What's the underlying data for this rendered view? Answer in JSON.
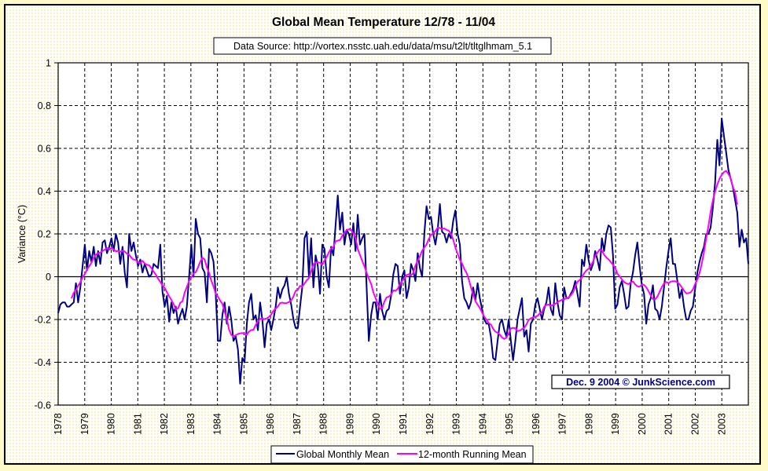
{
  "chart_data": {
    "type": "line",
    "title": "Global Mean Temperature 12/78 - 11/04",
    "subtitle": "Data Source: http://vortex.nsstc.uah.edu/data/msu/t2lt/tltglhmam_5.1",
    "annotation": "Dec. 9 2004 © JunkScience.com",
    "xlabel": "",
    "ylabel": "Variance (°C)",
    "ylim": [
      -0.6,
      1.0
    ],
    "yticks": [
      -0.6,
      -0.4,
      -0.2,
      0,
      0.2,
      0.4,
      0.6,
      0.8,
      1
    ],
    "ytick_labels": [
      "-0.6",
      "-0.4",
      "-0.2",
      "0",
      "0.2",
      "0.4",
      "0.6",
      "0.8",
      "1"
    ],
    "xtick_labels": [
      "1978",
      "1979",
      "1980",
      "1981",
      "1982",
      "1983",
      "1984",
      "1985",
      "1986",
      "1987",
      "1988",
      "1989",
      "1990",
      "1991",
      "1992",
      "1993",
      "1994",
      "1995",
      "1996",
      "1997",
      "1998",
      "1999",
      "2000",
      "2001",
      "2002",
      "2003"
    ],
    "x_period": "monthly, 12/1978 - 11/2004",
    "grid": true,
    "legend_position": "bottom-center",
    "series": [
      {
        "name": "Global Monthly Mean",
        "color": "#000080",
        "values": [
          -0.17,
          -0.13,
          -0.12,
          -0.12,
          -0.14,
          -0.14,
          -0.13,
          -0.12,
          -0.03,
          -0.12,
          -0.05,
          0.05,
          0.15,
          0.03,
          0.12,
          0.07,
          0.14,
          0.05,
          0.12,
          0.06,
          0.16,
          0.17,
          0.11,
          0.14,
          0.18,
          0.12,
          0.2,
          0.16,
          0.06,
          0.14,
          0.02,
          -0.05,
          0.2,
          0.12,
          0.16,
          0.1,
          0.05,
          0.08,
          0.02,
          0.06,
          0.03,
          0.0,
          0.01,
          0.06,
          0.05,
          0.04,
          0.15,
          -0.07,
          -0.14,
          -0.09,
          -0.21,
          -0.12,
          -0.17,
          -0.14,
          -0.22,
          -0.18,
          -0.15,
          -0.2,
          -0.14,
          0.0,
          0.15,
          0.0,
          0.27,
          0.2,
          0.18,
          0.04,
          0.02,
          -0.12,
          0.13,
          0.11,
          0.07,
          -0.08,
          -0.3,
          -0.3,
          -0.18,
          -0.12,
          -0.22,
          -0.14,
          -0.2,
          -0.3,
          -0.28,
          -0.34,
          -0.5,
          -0.38,
          -0.4,
          -0.22,
          -0.12,
          -0.08,
          -0.2,
          -0.18,
          -0.25,
          -0.12,
          -0.2,
          -0.33,
          -0.22,
          -0.2,
          -0.25,
          -0.2,
          -0.14,
          -0.05,
          -0.1,
          -0.06,
          -0.04,
          0.0,
          -0.08,
          -0.13,
          -0.2,
          -0.24,
          -0.24,
          -0.14,
          -0.05,
          0.18,
          0.21,
          0.0,
          0.18,
          -0.05,
          0.1,
          0.05,
          -0.08,
          0.15,
          0.13,
          0.0,
          -0.05,
          0.14,
          0.1,
          0.24,
          0.38,
          0.22,
          0.3,
          0.15,
          0.22,
          0.2,
          0.15,
          0.25,
          0.12,
          0.29,
          0.15,
          0.18,
          0.2,
          -0.05,
          -0.3,
          -0.18,
          -0.12,
          -0.12,
          -0.2,
          -0.08,
          -0.16,
          -0.2,
          -0.16,
          -0.15,
          -0.09,
          0.01,
          0.06,
          0.05,
          -0.08,
          0.0,
          0.03,
          -0.1,
          -0.05,
          0.06,
          0.03,
          -0.02,
          0.11,
          0.04,
          0.0,
          0.2,
          0.33,
          0.27,
          0.28,
          0.2,
          0.15,
          0.22,
          0.34,
          0.21,
          0.2,
          0.16,
          0.2,
          0.18,
          0.26,
          0.31,
          0.2,
          0.15,
          -0.02,
          -0.1,
          -0.12,
          -0.15,
          -0.12,
          -0.05,
          -0.11,
          -0.03,
          -0.1,
          -0.15,
          -0.2,
          -0.22,
          -0.22,
          -0.28,
          -0.38,
          -0.39,
          -0.3,
          -0.22,
          -0.2,
          -0.25,
          -0.28,
          -0.2,
          -0.3,
          -0.39,
          -0.3,
          -0.2,
          -0.15,
          -0.1,
          -0.28,
          -0.25,
          -0.35,
          -0.22,
          -0.2,
          -0.13,
          -0.1,
          -0.15,
          -0.2,
          -0.15,
          -0.12,
          -0.05,
          -0.15,
          -0.18,
          -0.03,
          -0.12,
          -0.18,
          -0.2,
          -0.05,
          -0.1,
          -0.1,
          -0.08,
          -0.06,
          -0.02,
          -0.08,
          -0.14,
          0.08,
          0.05,
          0.15,
          0.08,
          0.03,
          0.06,
          0.12,
          0.08,
          0.03,
          0.18,
          0.12,
          0.2,
          0.24,
          0.23,
          0.1,
          -0.15,
          -0.13,
          -0.05,
          -0.02,
          -0.08,
          -0.15,
          -0.14,
          -0.03,
          0.02,
          0.1,
          0.16,
          0.05,
          -0.04,
          -0.08,
          -0.22,
          -0.13,
          -0.1,
          -0.04,
          -0.15,
          -0.16,
          -0.2,
          -0.14,
          -0.05,
          0.04,
          0.12,
          0.18,
          0.06,
          0.06,
          -0.02,
          -0.1,
          -0.06,
          -0.14,
          -0.2,
          -0.2,
          -0.16,
          -0.14,
          -0.06,
          0.02,
          0.07,
          0.11,
          0.14,
          0.2,
          0.2,
          0.23,
          0.32,
          0.44,
          0.64,
          0.52,
          0.74
        ]
      },
      {
        "name": "12-month Running Mean",
        "color": "#ff00ff",
        "values": []
      }
    ]
  },
  "legend": {
    "items": [
      {
        "label": "Global Monthly Mean",
        "color": "#000080"
      },
      {
        "label": "12-month Running Mean",
        "color": "#ff00ff"
      }
    ]
  }
}
